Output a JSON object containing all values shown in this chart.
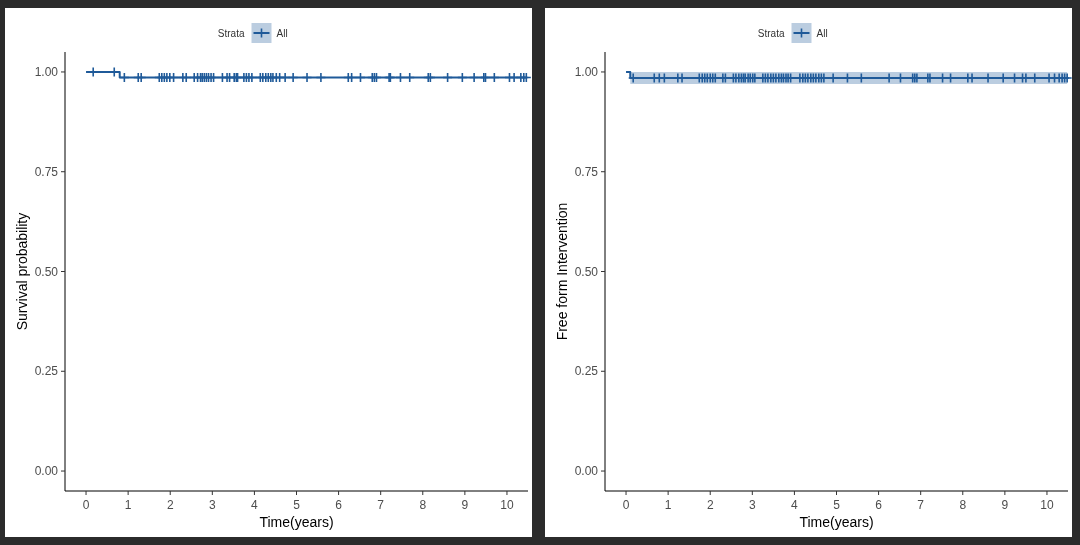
{
  "chart_data": [
    {
      "type": "step",
      "xlabel": "Time(years)",
      "ylabel": "Survival probability",
      "legend_title": "Strata",
      "legend": "top",
      "xlim": [
        -0.5,
        10.5
      ],
      "xticks": [
        0,
        1,
        2,
        3,
        4,
        5,
        6,
        7,
        8,
        9,
        10
      ],
      "ylim": [
        -0.05,
        1.05
      ],
      "yticks": [
        {
          "value": 0,
          "label": "0.00"
        },
        {
          "value": 0.25,
          "label": "0.25"
        },
        {
          "value": 0.5,
          "label": "0.50"
        },
        {
          "value": 0.75,
          "label": "0.75"
        },
        {
          "value": 1,
          "label": "1.00"
        }
      ],
      "series": [
        {
          "name": "All",
          "color": "#1f5a99",
          "x": [
            0,
            0.8,
            10.46
          ],
          "values": [
            1,
            0.986,
            0.986
          ]
        },
        {
          "type": "scatter",
          "marker": "cross",
          "color": "#1f5a99",
          "x": [
            0.17,
            0.67,
            0.91,
            1.24,
            1.31,
            1.74,
            1.8,
            1.86,
            1.92,
            1.99,
            2.08,
            2.3,
            2.38,
            2.57,
            2.65,
            2.72,
            2.76,
            2.81,
            2.86,
            2.91,
            2.97,
            3.03,
            3.24,
            3.35,
            3.41,
            3.52,
            3.57,
            3.6,
            3.75,
            3.81,
            3.87,
            3.94,
            4.14,
            4.2,
            4.27,
            4.33,
            4.39,
            4.44,
            4.52,
            4.6,
            4.73,
            4.92,
            5.25,
            5.58,
            6.23,
            6.31,
            6.52,
            6.8,
            6.85,
            6.9,
            7.2,
            7.23,
            7.47,
            7.69,
            8.13,
            8.18,
            8.59,
            8.94,
            9.22,
            9.45,
            9.49,
            9.7,
            10.06,
            10.17,
            10.33,
            10.4,
            10.46
          ],
          "values": [
            1,
            1,
            0.986,
            0.986,
            0.986,
            0.986,
            0.986,
            0.986,
            0.986,
            0.986,
            0.986,
            0.986,
            0.986,
            0.986,
            0.986,
            0.986,
            0.986,
            0.986,
            0.986,
            0.986,
            0.986,
            0.986,
            0.986,
            0.986,
            0.986,
            0.986,
            0.986,
            0.986,
            0.986,
            0.986,
            0.986,
            0.986,
            0.986,
            0.986,
            0.986,
            0.986,
            0.986,
            0.986,
            0.986,
            0.986,
            0.986,
            0.986,
            0.986,
            0.986,
            0.986,
            0.986,
            0.986,
            0.986,
            0.986,
            0.986,
            0.986,
            0.986,
            0.986,
            0.986,
            0.986,
            0.986,
            0.986,
            0.986,
            0.986,
            0.986,
            0.986,
            0.986,
            0.986,
            0.986,
            0.986,
            0.986,
            0.986
          ]
        }
      ]
    },
    {
      "type": "step",
      "xlabel": "Time(years)",
      "ylabel": "Free form Intervention",
      "legend_title": "Strata",
      "legend": "top",
      "xlim": [
        -0.5,
        10.5
      ],
      "xticks": [
        0,
        1,
        2,
        3,
        4,
        5,
        6,
        7,
        8,
        9,
        10
      ],
      "ylim": [
        -0.05,
        1.05
      ],
      "yticks": [
        {
          "value": 0,
          "label": "0.00"
        },
        {
          "value": 0.25,
          "label": "0.25"
        },
        {
          "value": 0.5,
          "label": "0.50"
        },
        {
          "value": 0.75,
          "label": "0.75"
        },
        {
          "value": 1,
          "label": "1.00"
        }
      ],
      "series": [
        {
          "name": "All",
          "color": "#1f5a99",
          "x": [
            0,
            0.1,
            10.48
          ],
          "values": [
            1,
            0.985,
            0.985
          ],
          "lower": [
            1,
            0.97,
            0.97
          ],
          "upper": [
            1,
            1,
            1
          ]
        },
        {
          "type": "scatter",
          "marker": "cross",
          "color": "#1f5a99",
          "x": [
            0.17,
            0.67,
            0.79,
            0.91,
            1.23,
            1.33,
            1.74,
            1.81,
            1.87,
            1.93,
            2,
            2.06,
            2.12,
            2.3,
            2.36,
            2.55,
            2.61,
            2.68,
            2.74,
            2.79,
            2.83,
            2.9,
            2.95,
            3.01,
            3.06,
            3.25,
            3.31,
            3.37,
            3.44,
            3.5,
            3.56,
            3.63,
            3.69,
            3.74,
            3.8,
            3.85,
            3.91,
            4.13,
            4.2,
            4.26,
            4.32,
            4.39,
            4.45,
            4.51,
            4.58,
            4.64,
            4.7,
            4.92,
            5.26,
            5.59,
            6.25,
            6.52,
            6.81,
            6.86,
            6.91,
            7.17,
            7.22,
            7.52,
            7.71,
            8.12,
            8.22,
            8.6,
            8.96,
            9.23,
            9.42,
            9.5,
            9.71,
            10.05,
            10.18,
            10.29,
            10.36,
            10.42,
            10.48
          ],
          "values": [
            0.985,
            0.985,
            0.985,
            0.985,
            0.985,
            0.985,
            0.985,
            0.985,
            0.985,
            0.985,
            0.985,
            0.985,
            0.985,
            0.985,
            0.985,
            0.985,
            0.985,
            0.985,
            0.985,
            0.985,
            0.985,
            0.985,
            0.985,
            0.985,
            0.985,
            0.985,
            0.985,
            0.985,
            0.985,
            0.985,
            0.985,
            0.985,
            0.985,
            0.985,
            0.985,
            0.985,
            0.985,
            0.985,
            0.985,
            0.985,
            0.985,
            0.985,
            0.985,
            0.985,
            0.985,
            0.985,
            0.985,
            0.985,
            0.985,
            0.985,
            0.985,
            0.985,
            0.985,
            0.985,
            0.985,
            0.985,
            0.985,
            0.985,
            0.985,
            0.985,
            0.985,
            0.985,
            0.985,
            0.985,
            0.985,
            0.985,
            0.985,
            0.985,
            0.985,
            0.985,
            0.985,
            0.985,
            0.985
          ]
        }
      ]
    }
  ]
}
